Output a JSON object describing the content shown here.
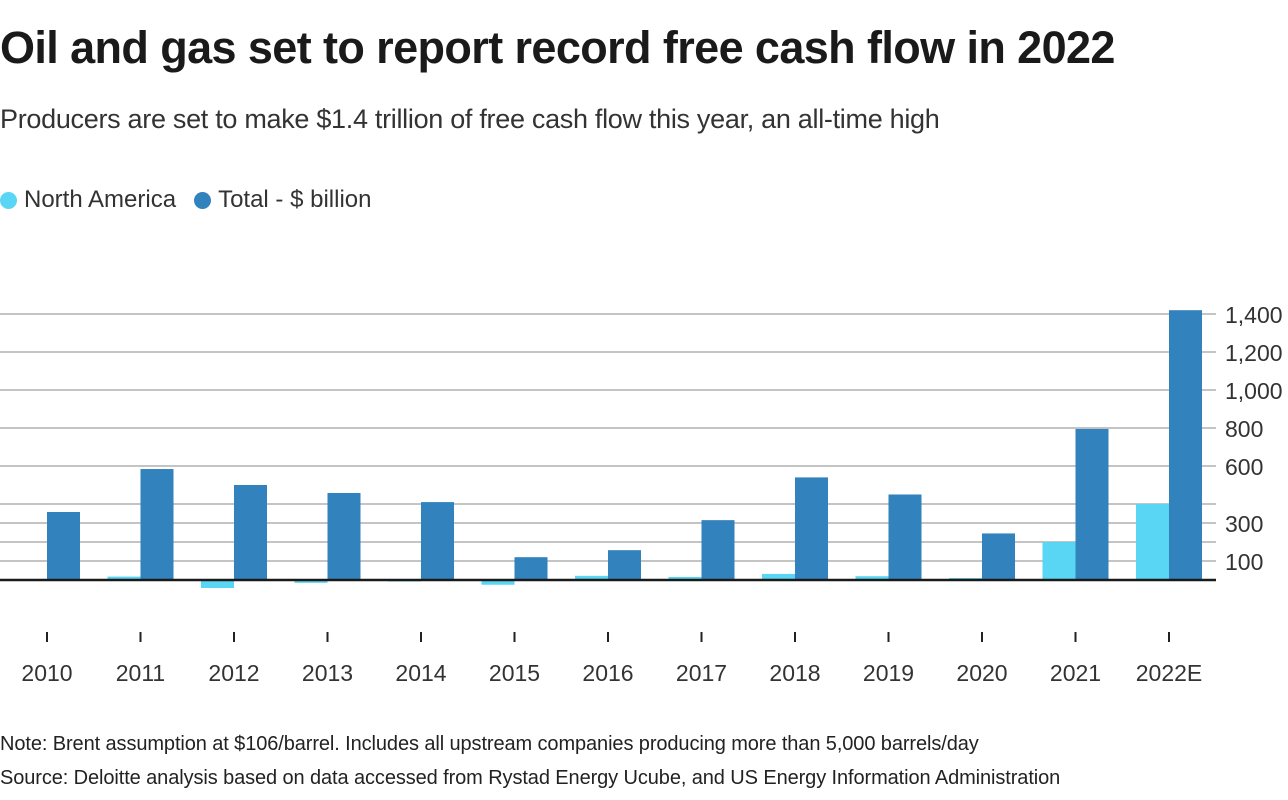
{
  "header": {
    "title": "Oil and gas set to report record free cash flow in 2022",
    "subtitle": "Producers are set to make $1.4 trillion of free cash flow this year, an all-time high"
  },
  "footer": {
    "note": "Note: Brent assumption at $106/barrel. Includes all upstream companies producing more than 5,000 barrels/day",
    "source": "Source: Deloitte analysis based on data accessed from Rystad Energy Ucube, and US Energy Information Administration"
  },
  "colors": {
    "north_america": "#5ad6f5",
    "total": "#3282bd",
    "gridline": "#c4c4c4",
    "baseline": "#1a1a1a",
    "text": "#333333"
  },
  "chart_data": {
    "type": "bar",
    "title": "Oil and gas set to report record free cash flow in 2022",
    "subtitle": "Producers are set to make $1.4 trillion of free cash flow this year, an all-time high",
    "xlabel": "",
    "ylabel": "",
    "categories": [
      "2010",
      "2011",
      "2012",
      "2013",
      "2014",
      "2015",
      "2016",
      "2017",
      "2018",
      "2019",
      "2020",
      "2021",
      "2022E"
    ],
    "series": [
      {
        "name": "North America",
        "color": "#5ad6f5",
        "values": [
          5,
          18,
          -42,
          -15,
          -8,
          -25,
          22,
          16,
          32,
          20,
          10,
          200,
          400
        ]
      },
      {
        "name": "Total - $ billion",
        "color": "#3282bd",
        "values": [
          358,
          584,
          500,
          458,
          410,
          120,
          157,
          315,
          540,
          450,
          245,
          795,
          1420
        ]
      }
    ],
    "ylim": [
      0,
      1400
    ],
    "yaxis_position": "right",
    "gridlines": [
      100,
      200,
      300,
      400,
      600,
      800,
      1000,
      1200,
      1400
    ],
    "ytick_labels": [
      {
        "value": 100,
        "label": "100"
      },
      {
        "value": 300,
        "label": "300"
      },
      {
        "value": 600,
        "label": "600"
      },
      {
        "value": 800,
        "label": "800"
      },
      {
        "value": 1000,
        "label": "1,000"
      },
      {
        "value": 1200,
        "label": "1,200"
      },
      {
        "value": 1400,
        "label": "1,400"
      }
    ],
    "grid": true,
    "legend": {
      "placement": "top-left",
      "entries": [
        "North America",
        "Total - $ billion"
      ]
    }
  }
}
